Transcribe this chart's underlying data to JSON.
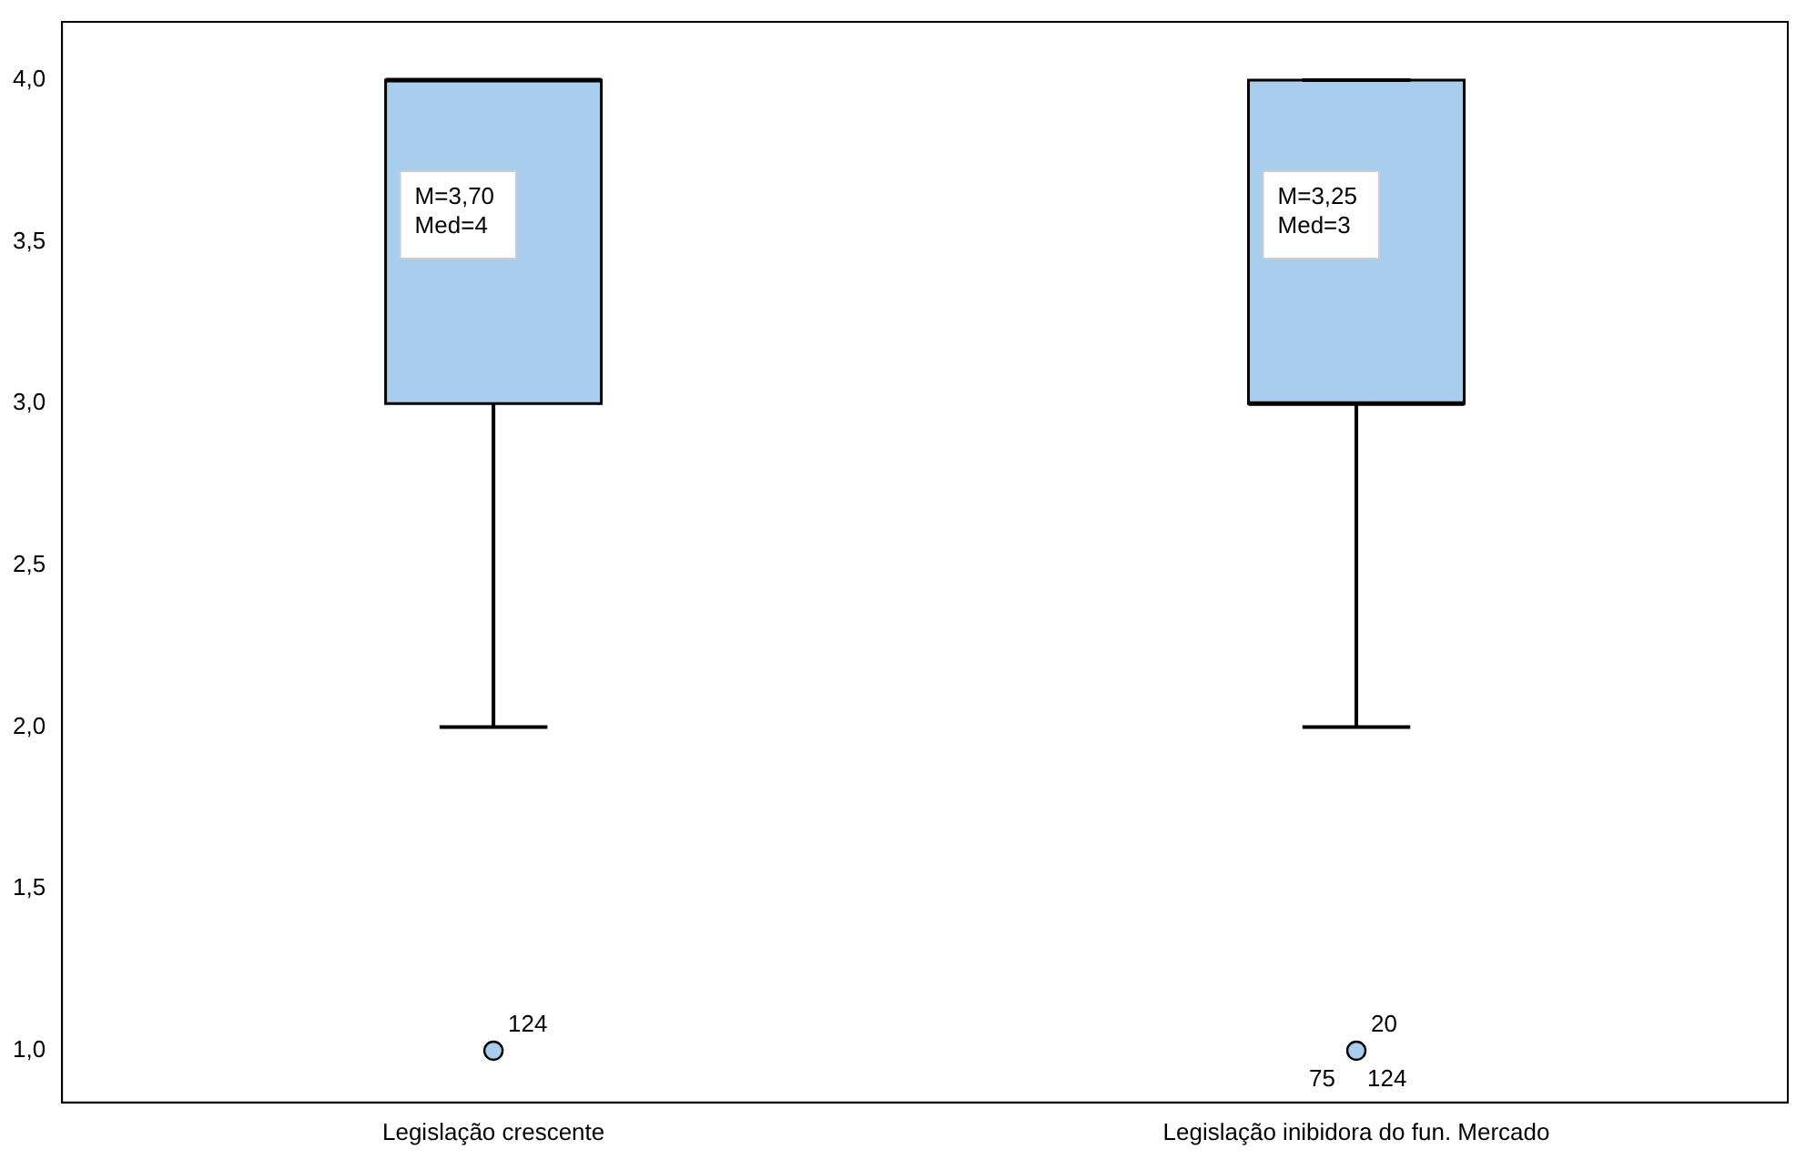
{
  "chart_data": {
    "type": "box",
    "categories": [
      "Legislação crescente",
      "Legislação inibidora do fun. Mercado"
    ],
    "color": "#a9cdec",
    "boxes": [
      {
        "low": 2,
        "q1": 3,
        "median": 4,
        "q3": 4,
        "high": 4,
        "outliers": [
          1
        ]
      },
      {
        "low": 2,
        "q1": 3,
        "median": 3,
        "q3": 4,
        "high": 4,
        "outliers": [
          1
        ]
      }
    ],
    "ylim": [
      0.84,
      4.18
    ],
    "yticks": [
      {
        "value": 1,
        "label": "1,0"
      },
      {
        "value": 1.5,
        "label": "1,5"
      },
      {
        "value": 2,
        "label": "2,0"
      },
      {
        "value": 2.5,
        "label": "2,5"
      },
      {
        "value": 3,
        "label": "3,0"
      },
      {
        "value": 3.5,
        "label": "3,5"
      },
      {
        "value": 4,
        "label": "4,0"
      }
    ],
    "grid": false,
    "legend": false,
    "annotations": [
      "M=3,70\nMed=4",
      "M=3,25\nMed=3",
      "124",
      "20",
      "75",
      "124"
    ]
  }
}
